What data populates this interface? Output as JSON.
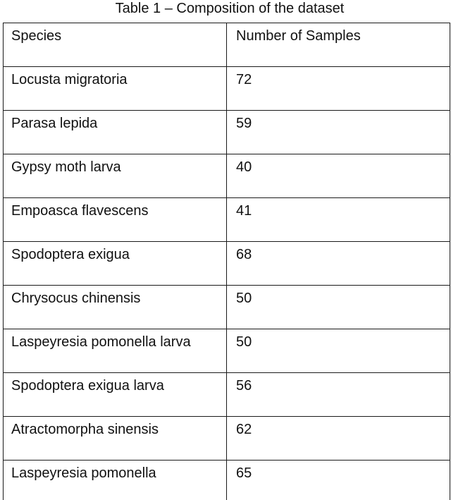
{
  "caption": "Table 1 – Composition of the dataset",
  "table": {
    "headers": [
      "Species",
      "Number of Samples"
    ],
    "rows": [
      [
        "Locusta migratoria",
        "72"
      ],
      [
        "Parasa lepida",
        "59"
      ],
      [
        "Gypsy moth larva",
        "40"
      ],
      [
        "Empoasca flavescens",
        "41"
      ],
      [
        "Spodoptera exigua",
        "68"
      ],
      [
        "Chrysocus chinensis",
        "50"
      ],
      [
        "Laspeyresia pomonella larva",
        "50"
      ],
      [
        "Spodoptera exigua larva",
        "56"
      ],
      [
        "Atractomorpha sinensis",
        "62"
      ],
      [
        "Laspeyresia pomonella",
        "65"
      ]
    ]
  }
}
